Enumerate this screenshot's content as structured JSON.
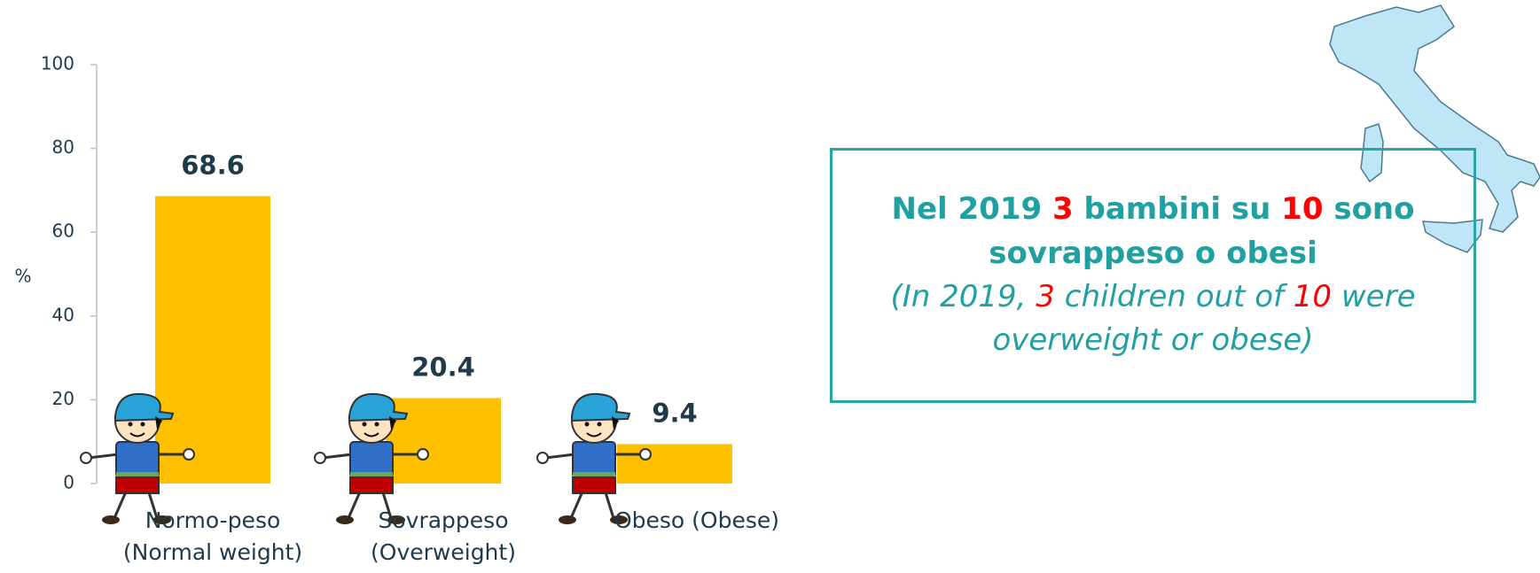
{
  "chart_data": {
    "type": "bar",
    "y_label": "%",
    "categories": [
      "Normo-peso (Normal weight)",
      "Sovrappeso (Overweight)",
      "Obeso (Obese)"
    ],
    "values": [
      68.6,
      20.4,
      9.4
    ],
    "color": "#ffc000",
    "ylim": [
      0,
      100
    ],
    "yticks": [
      0,
      20,
      40,
      60,
      80,
      100
    ],
    "grid": false
  },
  "callout": {
    "main": [
      "Nel 2019 ",
      "3",
      " bambini su ",
      "10",
      " sono sovrappeso o obesi"
    ],
    "translation": [
      "(In 2019, ",
      "3",
      " children out of ",
      "10",
      " were overweight or obese)"
    ]
  }
}
